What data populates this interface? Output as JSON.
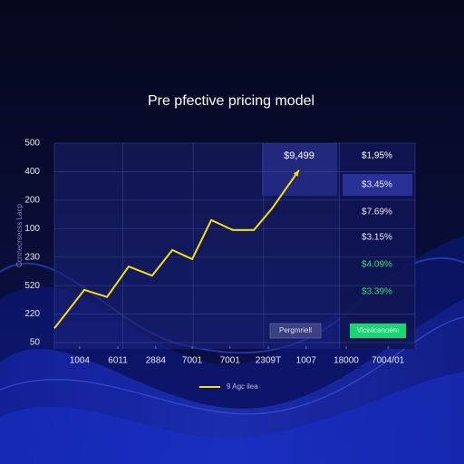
{
  "chart_data": {
    "type": "line",
    "title": "Pre pfective pricing model",
    "y_axis_label": "Ccnnecrsecss Lacp",
    "x": [
      0,
      8.3,
      14.6,
      20.6,
      27.1,
      32.7,
      38.2,
      43.5,
      49.5,
      55.3,
      60.3,
      67.8
    ],
    "xlim": [
      0,
      100
    ],
    "xticks": [
      {
        "value": 7,
        "label": "1004"
      },
      {
        "value": 17.6,
        "label": "6011"
      },
      {
        "value": 28.1,
        "label": "2884"
      },
      {
        "value": 38.2,
        "label": "7001"
      },
      {
        "value": 48.7,
        "label": "7001"
      },
      {
        "value": 59.3,
        "label": "2309T"
      },
      {
        "value": 69.8,
        "label": "1007"
      },
      {
        "value": 80.9,
        "label": "18000"
      },
      {
        "value": 92.5,
        "label": "7004/01"
      }
    ],
    "ylim": [
      0,
      7
    ],
    "yticks": [
      {
        "value": 0,
        "label": "50"
      },
      {
        "value": 1,
        "label": "220"
      },
      {
        "value": 2,
        "label": "520"
      },
      {
        "value": 3,
        "label": "230"
      },
      {
        "value": 4,
        "label": "100"
      },
      {
        "value": 5,
        "label": "200"
      },
      {
        "value": 6,
        "label": "400"
      },
      {
        "value": 7,
        "label": "500"
      }
    ],
    "grid": true,
    "series": [
      {
        "name": "9 Agc ilea",
        "color": "#f5e10a",
        "values": [
          0.5,
          1.85,
          1.6,
          2.67,
          2.35,
          3.25,
          2.93,
          4.3,
          3.95,
          3.95,
          4.7,
          6.05
        ]
      }
    ],
    "panel": {
      "highlight_value": "$9,499",
      "values": [
        "$1,95%",
        "$3.45%",
        "$7.69%",
        "$3.15%",
        "$4.09%",
        "$3.39%"
      ],
      "buttons": [
        "Pergmriell",
        "Vicwicanoem"
      ]
    }
  }
}
